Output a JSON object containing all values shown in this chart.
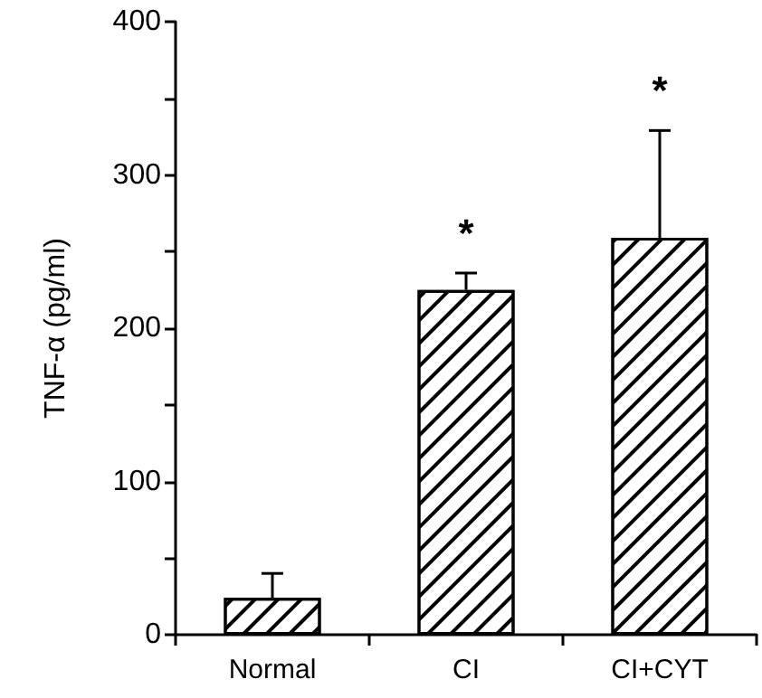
{
  "chart_data": {
    "type": "bar",
    "ylabel": "TNF-α (pg/ml)",
    "categories": [
      "Normal",
      "CI",
      "CI+CYT"
    ],
    "values": [
      24,
      225,
      259
    ],
    "errors": [
      [
        24,
        40
      ],
      [
        225,
        236
      ],
      [
        259,
        329
      ]
    ],
    "color": "#000000",
    "ylim": [
      0,
      400
    ],
    "yticks": [
      0,
      {
        "value": 50,
        "label": null
      },
      100,
      {
        "value": 150,
        "label": null
      },
      200,
      {
        "value": 250,
        "label": null
      },
      300,
      {
        "value": 350,
        "label": null
      },
      400
    ],
    "annotations": [
      "*",
      "*"
    ],
    "grid": false
  }
}
